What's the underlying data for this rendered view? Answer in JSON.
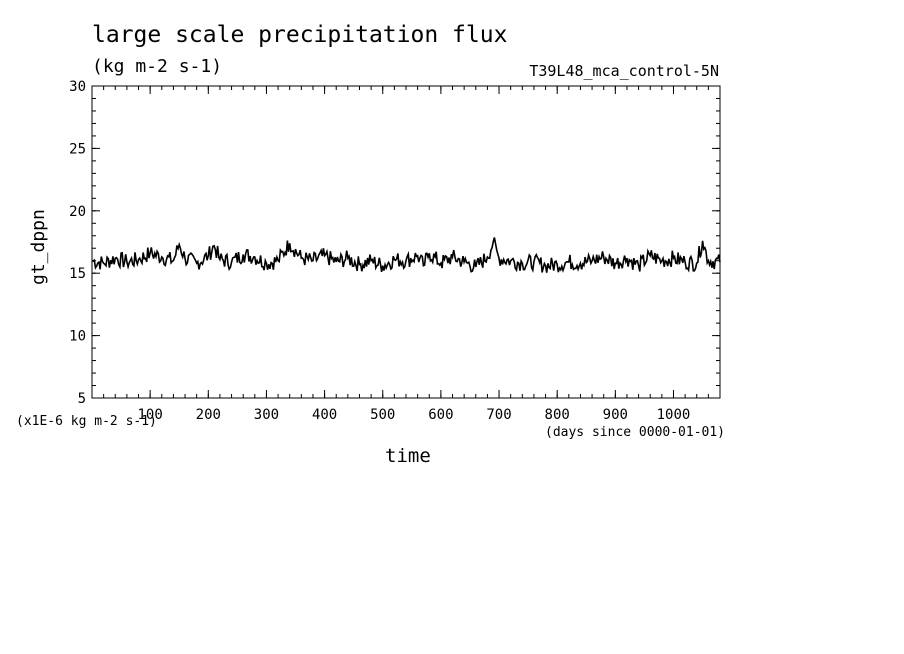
{
  "chart_data": {
    "type": "line",
    "title": "large scale precipitation flux",
    "subtitle": "(kg m-2 s-1)",
    "run_label": "T39L48_mca_control-5N",
    "ylabel": "gt_dppn",
    "xlabel": "time",
    "x_units": "(days since 0000-01-01)",
    "y_scale_note": "(x1E-6 kg m-2 s-1)",
    "xlim": [
      0,
      1080
    ],
    "ylim": [
      5,
      30
    ],
    "x_ticks": [
      100,
      200,
      300,
      400,
      500,
      600,
      700,
      800,
      900,
      1000
    ],
    "y_ticks": [
      5,
      10,
      15,
      20,
      25,
      30
    ],
    "grid": false,
    "series": [
      {
        "x": [
          0,
          20,
          40,
          60,
          80,
          100,
          120,
          140,
          150,
          160,
          180,
          200,
          210,
          220,
          240,
          260,
          280,
          300,
          320,
          340,
          360,
          380,
          400,
          420,
          440,
          460,
          480,
          500,
          520,
          540,
          560,
          570,
          580,
          600,
          620,
          640,
          660,
          680,
          690,
          700,
          720,
          740,
          760,
          780,
          800,
          820,
          840,
          860,
          880,
          900,
          920,
          940,
          960,
          980,
          1000,
          1020,
          1040,
          1050,
          1060,
          1080
        ],
        "y": [
          16.0,
          15.8,
          16.2,
          15.9,
          16.1,
          16.6,
          16.3,
          16.0,
          17.3,
          16.2,
          15.8,
          16.4,
          17.2,
          16.1,
          15.9,
          16.5,
          16.3,
          15.8,
          16.0,
          17.4,
          16.2,
          16.0,
          16.4,
          15.9,
          16.2,
          15.7,
          16.0,
          15.6,
          16.1,
          16.0,
          16.4,
          15.6,
          16.6,
          15.8,
          16.3,
          15.9,
          15.5,
          16.3,
          17.5,
          16.2,
          16.0,
          15.8,
          15.9,
          15.6,
          15.7,
          15.9,
          15.8,
          16.0,
          16.3,
          15.8,
          16.2,
          15.6,
          16.4,
          16.0,
          16.2,
          15.9,
          15.8,
          17.6,
          16.0,
          15.9
        ]
      }
    ]
  }
}
